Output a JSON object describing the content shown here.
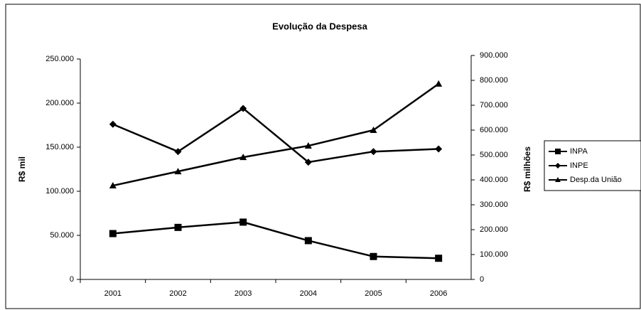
{
  "chart_data": {
    "type": "line",
    "title": "Evolução da Despesa",
    "y_label": "R$ mil",
    "y2_label": "R$ milhões",
    "categories": [
      "2001",
      "2002",
      "2003",
      "2004",
      "2005",
      "2006"
    ],
    "series": [
      {
        "name": "INPA",
        "color": "#000000",
        "marker": "square",
        "values": [
          52000,
          59000,
          65000,
          44000,
          26000,
          24000
        ]
      },
      {
        "name": "INPE",
        "color": "#000000",
        "marker": "diamond",
        "values": [
          176000,
          145000,
          194000,
          133000,
          145000,
          148000
        ]
      },
      {
        "name": "Desp.da União",
        "color": "#000000",
        "marker": "triangle",
        "axis": "y2",
        "values": [
          377000,
          434000,
          491000,
          537000,
          600000,
          786000
        ]
      }
    ],
    "ylim": [
      0,
      250000
    ],
    "yticks": [
      0,
      {
        "value": 50000,
        "label": "50.000"
      },
      {
        "value": 100000,
        "label": "100.000"
      },
      {
        "value": 150000,
        "label": "150.000"
      },
      {
        "value": 200000,
        "label": "200.000"
      },
      {
        "value": 250000,
        "label": "250.000"
      }
    ],
    "y2lim": [
      0,
      900000
    ],
    "y2ticks": [
      0,
      {
        "value": 100000,
        "label": "100.000"
      },
      {
        "value": 200000,
        "label": "200.000"
      },
      {
        "value": 300000,
        "label": "300.000"
      },
      {
        "value": 400000,
        "label": "400.000"
      },
      {
        "value": 500000,
        "label": "500.000"
      },
      {
        "value": 600000,
        "label": "600.000"
      },
      {
        "value": 700000,
        "label": "700.000"
      },
      {
        "value": 800000,
        "label": "800.000"
      },
      {
        "value": 900000,
        "label": "900.000"
      }
    ],
    "legend": "right",
    "grid": false
  }
}
